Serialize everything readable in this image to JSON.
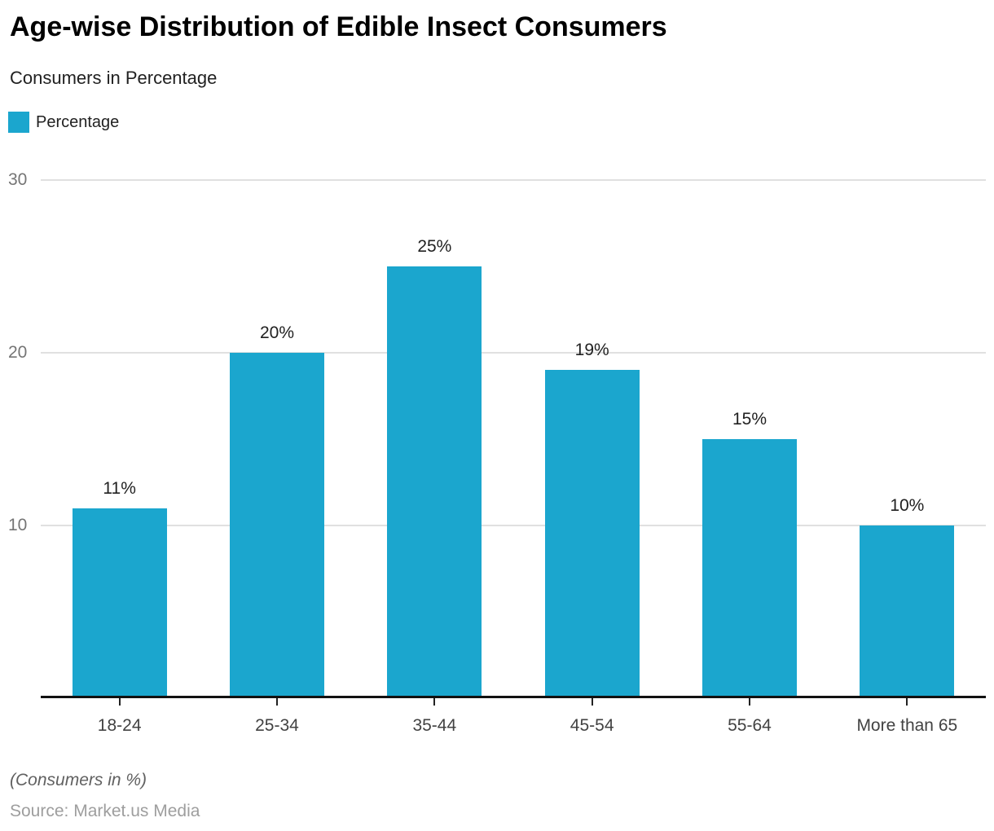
{
  "header": {
    "title": "Age-wise Distribution of Edible Insect Consumers",
    "subtitle": "Consumers in Percentage"
  },
  "legend": {
    "label": "Percentage"
  },
  "chart_data": {
    "type": "bar",
    "title": "Age-wise Distribution of Edible Insect Consumers",
    "subtitle": "Consumers in Percentage",
    "series_name": "Percentage",
    "categories": [
      "18-24",
      "25-34",
      "35-44",
      "45-54",
      "55-64",
      "More than 65"
    ],
    "values": [
      11,
      20,
      25,
      19,
      15,
      10
    ],
    "value_labels": [
      "11%",
      "20%",
      "25%",
      "19%",
      "15%",
      "10%"
    ],
    "yticks": [
      10,
      20,
      30
    ],
    "ylim": [
      0,
      30
    ],
    "xlabel": "",
    "ylabel": "",
    "grid": true,
    "legend_position": "top-left",
    "bar_color": "#1BA6CE",
    "gridline_color": "#e0e0e0",
    "axis_color": "#111111"
  },
  "footer": {
    "note": "(Consumers in %)",
    "source": "Source: Market.us Media"
  }
}
